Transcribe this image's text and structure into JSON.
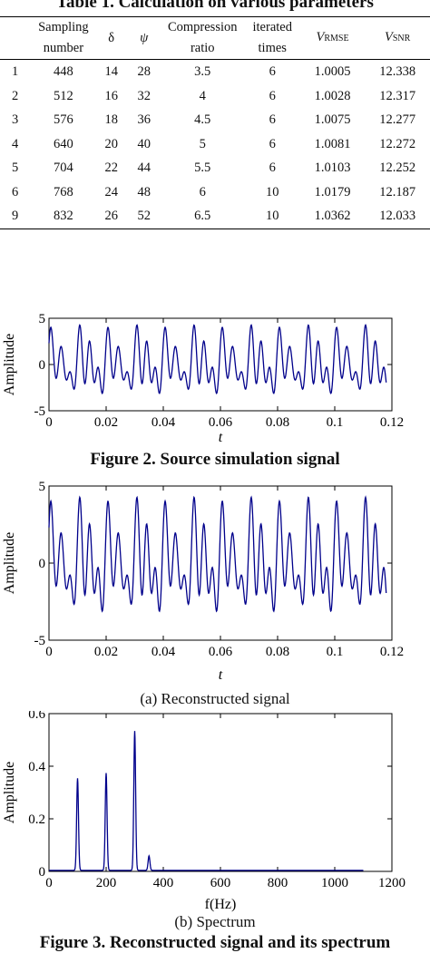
{
  "table": {
    "title": "Table 1. Calculation on various parameters",
    "headers": [
      {
        "main": "",
        "line2": ""
      },
      {
        "main": "Sampling",
        "line2": "number"
      },
      {
        "main": "δ",
        "line2": ""
      },
      {
        "main": "ψ",
        "line2": ""
      },
      {
        "main": "Compression",
        "line2": "ratio"
      },
      {
        "main": "iterated",
        "line2": "times"
      },
      {
        "main": "V",
        "sub": "RMSE"
      },
      {
        "main": "V",
        "sub": "SNR"
      }
    ],
    "rows": [
      [
        "1",
        "448",
        "14",
        "28",
        "3.5",
        "6",
        "1.0005",
        "12.338"
      ],
      [
        "2",
        "512",
        "16",
        "32",
        "4",
        "6",
        "1.0028",
        "12.317"
      ],
      [
        "3",
        "576",
        "18",
        "36",
        "4.5",
        "6",
        "1.0075",
        "12.277"
      ],
      [
        "4",
        "640",
        "20",
        "40",
        "5",
        "6",
        "1.0081",
        "12.272"
      ],
      [
        "5",
        "704",
        "22",
        "44",
        "5.5",
        "6",
        "1.0103",
        "12.252"
      ],
      [
        "6",
        "768",
        "24",
        "48",
        "6",
        "10",
        "1.0179",
        "12.187"
      ],
      [
        "9",
        "832",
        "26",
        "52",
        "6.5",
        "10",
        "1.0362",
        "12.033"
      ]
    ]
  },
  "figure2": {
    "caption": "Figure 2. Source simulation signal"
  },
  "figure3": {
    "caption_a": "(a) Reconstructed signal",
    "caption_b": "(b) Spectrum",
    "caption": "Figure 3. Reconstructed signal and its spectrum"
  },
  "chart_data": [
    {
      "type": "line",
      "xlabel": "t",
      "ylabel": "Amplitude",
      "xlim": [
        0,
        0.12
      ],
      "ylim": [
        -5,
        5
      ],
      "xticks": [
        "0",
        "0.02",
        "0.04",
        "0.06",
        "0.08",
        "0.1",
        "0.12"
      ],
      "yticks": [
        "-5",
        "0",
        "5"
      ],
      "series": [
        {
          "signal_frequencies_hz": [
            100,
            200,
            300,
            350
          ],
          "amplitudes": [
            1.4,
            1.4,
            1.9,
            0.3
          ],
          "x_end": 0.118,
          "color": "#00008b"
        }
      ]
    },
    {
      "type": "line",
      "xlabel": "t",
      "ylabel": "Amplitude",
      "xlim": [
        0,
        0.12
      ],
      "ylim": [
        -5,
        5
      ],
      "xticks": [
        "0",
        "0.02",
        "0.04",
        "0.06",
        "0.08",
        "0.1",
        "0.12"
      ],
      "yticks": [
        "-5",
        "0",
        "5"
      ],
      "series": [
        {
          "signal_frequencies_hz": [
            100,
            200,
            300,
            350
          ],
          "amplitudes": [
            1.4,
            1.4,
            1.9,
            0.3
          ],
          "x_end": 0.118,
          "color": "#00008b"
        }
      ]
    },
    {
      "type": "line",
      "xlabel": "f(Hz)",
      "ylabel": "Amplitude",
      "xlim": [
        0,
        1200
      ],
      "ylim": [
        0,
        0.6
      ],
      "xticks": [
        "0",
        "200",
        "400",
        "600",
        "800",
        "1000",
        "1200"
      ],
      "yticks": [
        "0",
        "0.2",
        "0.4",
        "0.6"
      ],
      "series": [
        {
          "peaks": [
            {
              "f": 100,
              "a": 0.35
            },
            {
              "f": 200,
              "a": 0.37
            },
            {
              "f": 300,
              "a": 0.53
            },
            {
              "f": 350,
              "a": 0.055
            }
          ],
          "x_end": 1100,
          "color": "#00008b"
        }
      ]
    }
  ]
}
